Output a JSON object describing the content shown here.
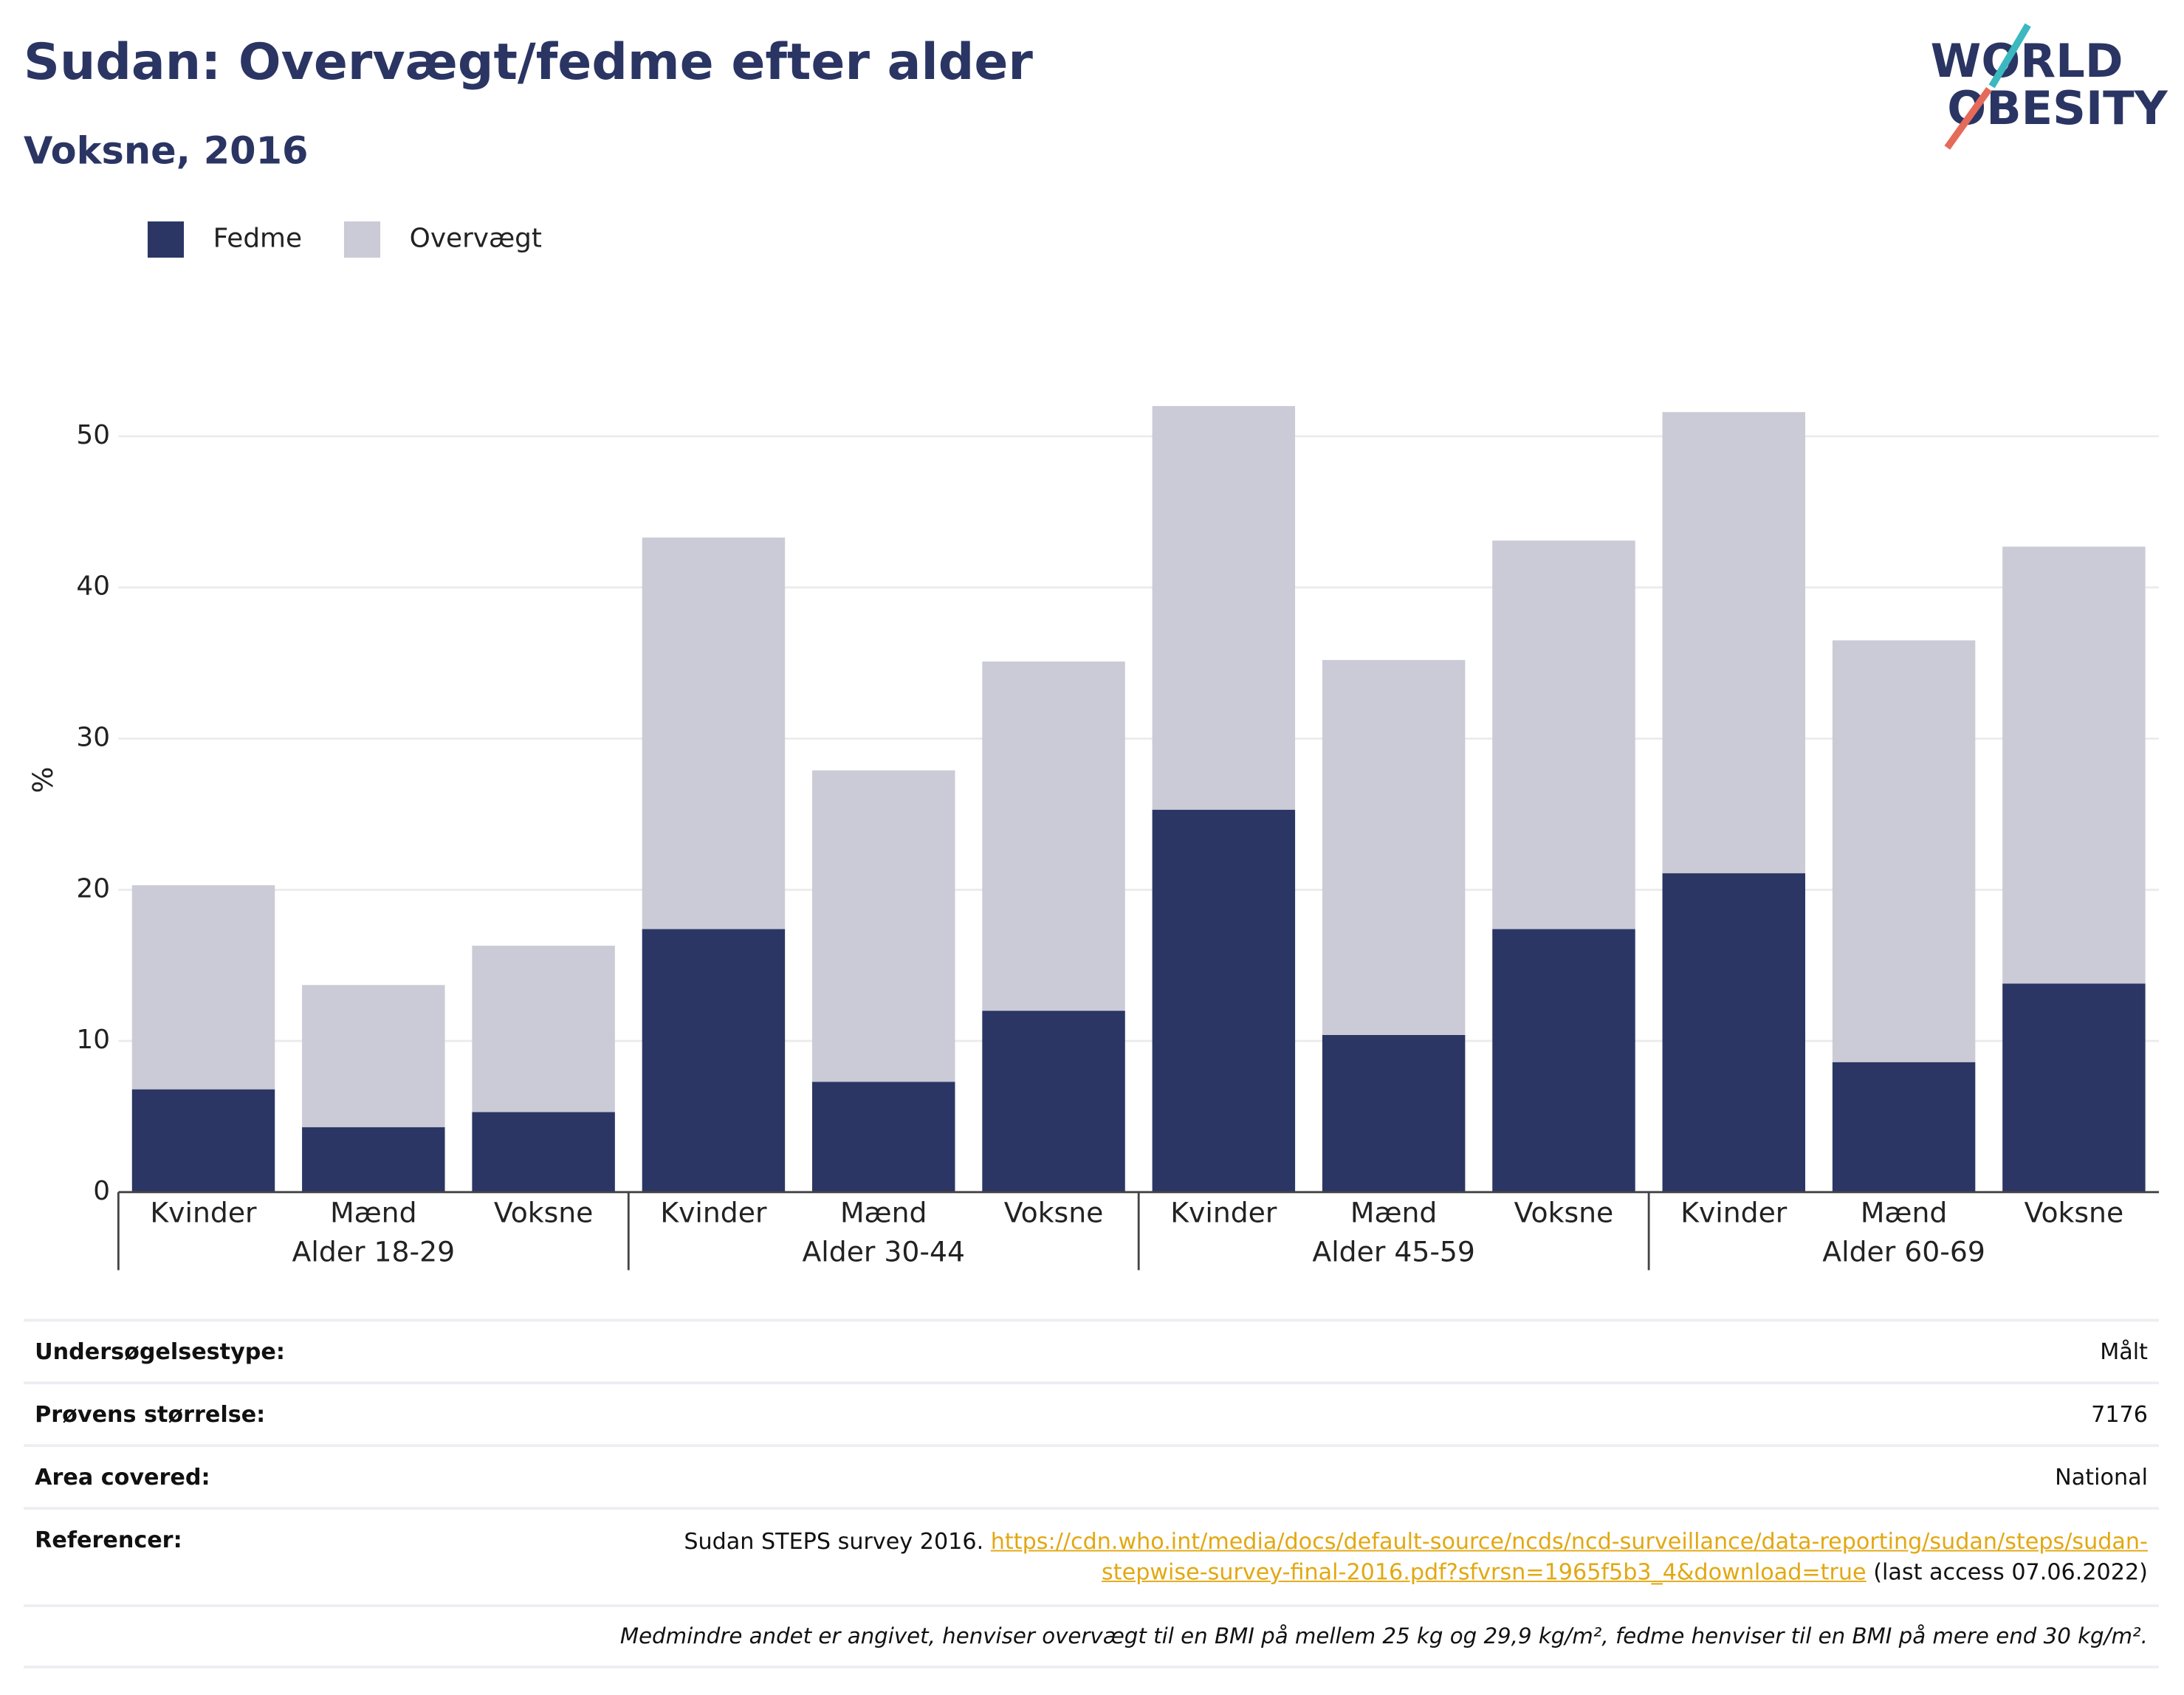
{
  "chart_data": {
    "type": "stacked-bar",
    "title": "Sudan: Overvægt/fedme efter alder",
    "subtitle": "Voksne, 2016",
    "y_label": "%",
    "categories": [
      "Kvinder",
      "Mænd",
      "Voksne",
      "Kvinder",
      "Mænd",
      "Voksne",
      "Kvinder",
      "Mænd",
      "Voksne",
      "Kvinder",
      "Mænd",
      "Voksne"
    ],
    "groups": [
      "Alder 18-29",
      "Alder 30-44",
      "Alder 45-59",
      "Alder 60-69"
    ],
    "series": [
      {
        "name": "Fedme",
        "color": "#2b3664",
        "values": [
          6.8,
          4.3,
          5.3,
          17.4,
          7.3,
          12.0,
          25.3,
          10.4,
          17.4,
          21.1,
          8.6,
          13.8
        ]
      },
      {
        "name": "Overvægt",
        "color": "#cacbd6",
        "values": [
          13.5,
          9.4,
          11.0,
          25.9,
          20.6,
          23.1,
          26.7,
          24.8,
          25.7,
          30.5,
          27.9,
          28.9
        ]
      }
    ],
    "ylim": [
      0,
      55
    ],
    "yticks": [
      0,
      10,
      20,
      30,
      40,
      50
    ],
    "grid": true,
    "legend": "top-left"
  },
  "logo": {
    "line1": "WORLD",
    "line2": "OBESITY"
  },
  "info": {
    "rows": [
      {
        "label": "Undersøgelsestype:",
        "value": "Målt"
      },
      {
        "label": "Prøvens størrelse:",
        "value": "7176"
      },
      {
        "label": "Area covered:",
        "value": "National"
      }
    ],
    "references": {
      "label": "Referencer:",
      "text": "Sudan STEPS survey 2016.",
      "link": "https://cdn.who.int/media/docs/default-source/ncds/ncd-surveillance/data-reporting/sudan/steps/sudan-stepwise-survey-final-2016.pdf?sfvrsn=1965f5b3_4&download=true",
      "note": "(last access 07.06.2022)"
    },
    "footnote": "Medmindre andet er angivet, henviser overvægt til en BMI på mellem 25 kg og 29,9 kg/m², fedme henviser til en BMI på mere end 30 kg/m²."
  }
}
